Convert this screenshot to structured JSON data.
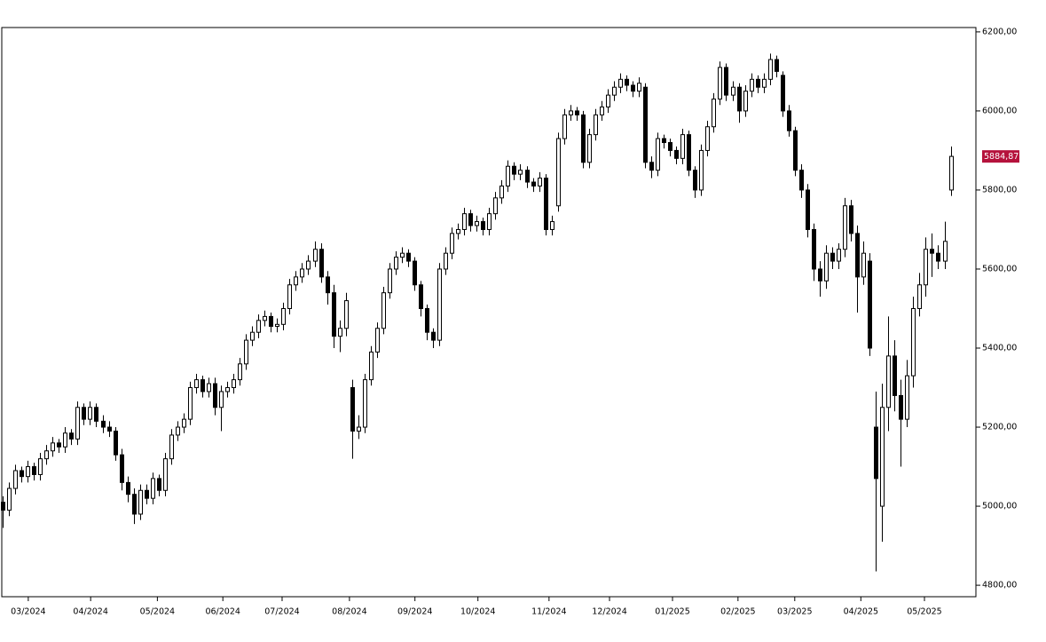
{
  "chart_data": {
    "type": "candlestick",
    "up_color": "#ffffff",
    "down_color": "#000000",
    "line_color": "#000000",
    "axis_side": "right",
    "xlim": [
      -0.15,
      156.05
    ],
    "xticks": [
      {
        "value": 4.1,
        "label": "03/2024"
      },
      {
        "value": 14.1,
        "label": "04/2024"
      },
      {
        "value": 24.8,
        "label": "05/2024"
      },
      {
        "value": 35.3,
        "label": "06/2024"
      },
      {
        "value": 44.8,
        "label": "07/2024"
      },
      {
        "value": 55.6,
        "label": "08/2024"
      },
      {
        "value": 66.1,
        "label": "09/2024"
      },
      {
        "value": 76.2,
        "label": "10/2024"
      },
      {
        "value": 87.6,
        "label": "11/2024"
      },
      {
        "value": 97.3,
        "label": "12/2024"
      },
      {
        "value": 107.4,
        "label": "01/2025"
      },
      {
        "value": 117.9,
        "label": "02/2025"
      },
      {
        "value": 127.0,
        "label": "03/2025"
      },
      {
        "value": 137.6,
        "label": "04/2025"
      },
      {
        "value": 147.8,
        "label": "05/2025"
      }
    ],
    "ylim": [
      4771,
      6211
    ],
    "yticks": [
      {
        "value": 4800,
        "label": "4800,00"
      },
      {
        "value": 5000,
        "label": "5000,00"
      },
      {
        "value": 5200,
        "label": "5200,00"
      },
      {
        "value": 5400,
        "label": "5400,00"
      },
      {
        "value": 5600,
        "label": "5600,00"
      },
      {
        "value": 5800,
        "label": "5800,00"
      },
      {
        "value": 6000,
        "label": "6000,00"
      },
      {
        "value": 6200,
        "label": "6200,00"
      }
    ],
    "last_price": {
      "value": 5884.87,
      "label": "5884,87",
      "color": "#b5123c"
    },
    "open": [
      5010,
      4990,
      5045,
      5090,
      5075,
      5100,
      5080,
      5120,
      5140,
      5160,
      5150,
      5185,
      5170,
      5250,
      5220,
      5250,
      5215,
      5200,
      5190,
      5130,
      5060,
      5030,
      4980,
      5040,
      5020,
      5070,
      5040,
      5120,
      5180,
      5200,
      5220,
      5300,
      5320,
      5290,
      5310,
      5250,
      5290,
      5300,
      5320,
      5360,
      5420,
      5440,
      5470,
      5480,
      5455,
      5460,
      5500,
      5560,
      5580,
      5600,
      5620,
      5650,
      5580,
      5540,
      5430,
      5450,
      5300,
      5190,
      5200,
      5320,
      5390,
      5450,
      5540,
      5600,
      5630,
      5640,
      5620,
      5560,
      5500,
      5440,
      5420,
      5600,
      5640,
      5690,
      5700,
      5740,
      5710,
      5720,
      5700,
      5740,
      5780,
      5810,
      5860,
      5840,
      5850,
      5820,
      5810,
      5830,
      5700,
      5760,
      5930,
      5990,
      6000,
      5990,
      5870,
      5940,
      5990,
      6010,
      6040,
      6060,
      6080,
      6065,
      6050,
      6060,
      5870,
      5850,
      5930,
      5920,
      5900,
      5880,
      5940,
      5850,
      5800,
      5900,
      5960,
      6030,
      6110,
      6040,
      6060,
      6000,
      6050,
      6080,
      6060,
      6080,
      6130,
      6090,
      6000,
      5950,
      5850,
      5800,
      5700,
      5600,
      5570,
      5640,
      5620,
      5650,
      5760,
      5690,
      5580,
      5620,
      5200,
      5000,
      5250,
      5380,
      5280,
      5220,
      5330,
      5500,
      5560,
      5650,
      5640,
      5620,
      5800
    ],
    "high": [
      5025,
      5060,
      5105,
      5100,
      5115,
      5110,
      5135,
      5155,
      5175,
      5170,
      5200,
      5195,
      5265,
      5260,
      5265,
      5260,
      5230,
      5215,
      5200,
      5145,
      5075,
      5045,
      5055,
      5055,
      5085,
      5080,
      5135,
      5195,
      5215,
      5235,
      5315,
      5335,
      5330,
      5325,
      5325,
      5305,
      5315,
      5335,
      5375,
      5435,
      5455,
      5485,
      5495,
      5490,
      5475,
      5515,
      5575,
      5595,
      5615,
      5635,
      5670,
      5665,
      5595,
      5560,
      5470,
      5540,
      5320,
      5230,
      5335,
      5405,
      5465,
      5555,
      5615,
      5645,
      5655,
      5650,
      5630,
      5570,
      5510,
      5450,
      5615,
      5655,
      5705,
      5715,
      5755,
      5750,
      5735,
      5730,
      5755,
      5795,
      5825,
      5875,
      5870,
      5865,
      5860,
      5830,
      5845,
      5840,
      5735,
      5945,
      6005,
      6015,
      6010,
      6000,
      5955,
      6005,
      6025,
      6055,
      6075,
      6095,
      6090,
      6075,
      6085,
      6070,
      5885,
      5945,
      5940,
      5930,
      5910,
      5955,
      5950,
      5860,
      5915,
      5975,
      6045,
      6125,
      6120,
      6075,
      6070,
      6065,
      6095,
      6090,
      6095,
      6145,
      6140,
      6100,
      6015,
      5960,
      5865,
      5815,
      5715,
      5620,
      5660,
      5655,
      5665,
      5780,
      5775,
      5710,
      5670,
      5640,
      5290,
      5310,
      5480,
      5420,
      5320,
      5370,
      5530,
      5590,
      5680,
      5690,
      5660,
      5720,
      5910
    ],
    "low": [
      4945,
      4975,
      5030,
      5060,
      5060,
      5065,
      5065,
      5105,
      5125,
      5135,
      5135,
      5155,
      5155,
      5205,
      5205,
      5200,
      5185,
      5175,
      5115,
      5040,
      5010,
      4955,
      4965,
      5005,
      5005,
      5025,
      5025,
      5105,
      5165,
      5185,
      5205,
      5285,
      5275,
      5275,
      5230,
      5190,
      5275,
      5285,
      5305,
      5345,
      5405,
      5425,
      5455,
      5440,
      5440,
      5445,
      5485,
      5545,
      5565,
      5585,
      5605,
      5565,
      5510,
      5400,
      5390,
      5430,
      5120,
      5170,
      5185,
      5305,
      5375,
      5435,
      5525,
      5585,
      5615,
      5605,
      5545,
      5480,
      5420,
      5400,
      5405,
      5585,
      5625,
      5675,
      5685,
      5695,
      5695,
      5685,
      5685,
      5725,
      5765,
      5795,
      5825,
      5825,
      5805,
      5795,
      5795,
      5685,
      5685,
      5745,
      5915,
      5975,
      5975,
      5855,
      5855,
      5925,
      5975,
      5995,
      6025,
      6045,
      6050,
      6035,
      6035,
      5855,
      5830,
      5835,
      5905,
      5885,
      5865,
      5865,
      5835,
      5780,
      5785,
      5885,
      5945,
      6015,
      6025,
      6025,
      5970,
      5985,
      6035,
      6045,
      6045,
      6065,
      6085,
      5985,
      5935,
      5835,
      5780,
      5680,
      5570,
      5530,
      5550,
      5600,
      5600,
      5630,
      5670,
      5490,
      5560,
      5380,
      4835,
      4910,
      5190,
      5240,
      5100,
      5200,
      5300,
      5480,
      5530,
      5580,
      5600,
      5600,
      5785
    ],
    "close": [
      4990,
      5045,
      5090,
      5075,
      5100,
      5080,
      5120,
      5140,
      5160,
      5150,
      5185,
      5170,
      5250,
      5220,
      5250,
      5215,
      5200,
      5190,
      5130,
      5060,
      5030,
      4980,
      5040,
      5020,
      5070,
      5040,
      5120,
      5180,
      5200,
      5220,
      5300,
      5320,
      5290,
      5310,
      5250,
      5290,
      5300,
      5320,
      5360,
      5420,
      5440,
      5470,
      5480,
      5455,
      5460,
      5500,
      5560,
      5580,
      5600,
      5620,
      5650,
      5580,
      5540,
      5430,
      5450,
      5520,
      5190,
      5200,
      5320,
      5390,
      5450,
      5540,
      5600,
      5630,
      5640,
      5620,
      5560,
      5500,
      5440,
      5420,
      5600,
      5640,
      5690,
      5700,
      5740,
      5710,
      5720,
      5700,
      5740,
      5780,
      5810,
      5860,
      5840,
      5850,
      5820,
      5810,
      5830,
      5700,
      5720,
      5930,
      5990,
      6000,
      5990,
      5870,
      5940,
      5990,
      6010,
      6040,
      6060,
      6080,
      6065,
      6050,
      6070,
      5870,
      5850,
      5930,
      5920,
      5900,
      5880,
      5940,
      5850,
      5800,
      5900,
      5960,
      6030,
      6110,
      6040,
      6060,
      6000,
      6050,
      6080,
      6060,
      6080,
      6130,
      6100,
      6000,
      5950,
      5850,
      5800,
      5700,
      5600,
      5570,
      5640,
      5620,
      5650,
      5760,
      5690,
      5580,
      5640,
      5400,
      5070,
      5250,
      5380,
      5280,
      5220,
      5330,
      5500,
      5560,
      5650,
      5640,
      5620,
      5670,
      5885
    ]
  }
}
